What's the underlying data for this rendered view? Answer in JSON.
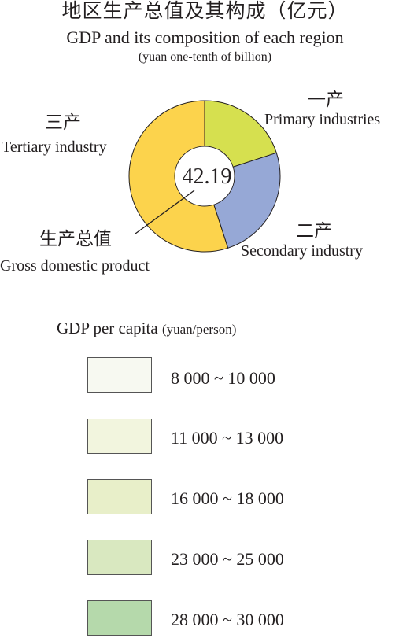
{
  "titles": {
    "zh": "地区生产总值及其构成（亿元）",
    "en": "GDP and its composition of each region",
    "unit": "(yuan one-tenth of billion)"
  },
  "chart_data": {
    "type": "pie",
    "center_value": "42.19",
    "total_label_zh": "生产总值",
    "total_label_en": "Gross domestic product",
    "series": [
      {
        "name_zh": "一产",
        "name_en": "Primary industries",
        "value": 20,
        "color": "#d6e04f"
      },
      {
        "name_zh": "二产",
        "name_en": "Secondary industry",
        "value": 25,
        "color": "#96a8d6"
      },
      {
        "name_zh": "三产",
        "name_en": "Tertiary industry",
        "value": 55,
        "color": "#fcd34c"
      }
    ]
  },
  "legend": {
    "title": "GDP per capita",
    "unit": "(yuan/person)",
    "items": [
      {
        "label": "8 000 ~ 10 000",
        "color": "#f7f9f1"
      },
      {
        "label": "11 000 ~ 13 000",
        "color": "#f2f5de"
      },
      {
        "label": "16 000 ~ 18 000",
        "color": "#e8efc9"
      },
      {
        "label": "23 000 ~ 25 000",
        "color": "#d9e8c0"
      },
      {
        "label": "28 000 ~ 30 000",
        "color": "#b5d9ab"
      }
    ]
  }
}
